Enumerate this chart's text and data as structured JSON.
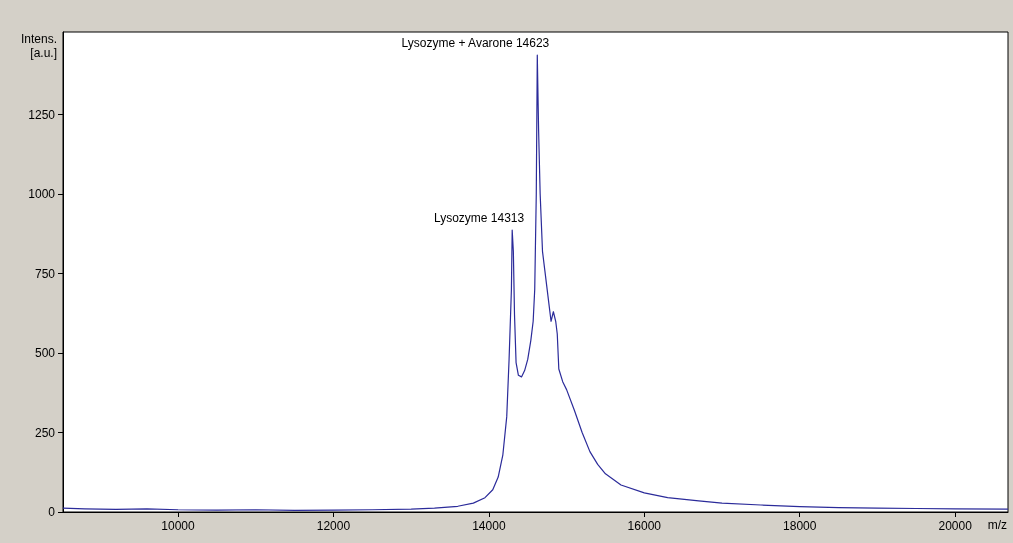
{
  "chart_data": {
    "type": "line",
    "xlabel": "m/z",
    "ylabel": "Intens.\n[a.u.]",
    "x": [
      8520,
      8800,
      9200,
      9600,
      10000,
      10500,
      11000,
      11500,
      12000,
      12500,
      13000,
      13300,
      13600,
      13800,
      13950,
      14050,
      14120,
      14180,
      14230,
      14260,
      14290,
      14300,
      14315,
      14330,
      14350,
      14380,
      14420,
      14460,
      14500,
      14540,
      14570,
      14590,
      14610,
      14623,
      14640,
      14660,
      14690,
      14720,
      14760,
      14800,
      14830,
      14860,
      14880,
      14900,
      14950,
      15000,
      15100,
      15200,
      15300,
      15400,
      15500,
      15700,
      16000,
      16300,
      16700,
      17000,
      17500,
      18000,
      18500,
      19000,
      19500,
      20000,
      20680
    ],
    "series": [
      {
        "color": "#2b2b9a",
        "values": [
          12,
          10,
          8,
          10,
          7,
          6,
          7,
          5,
          6,
          7,
          9,
          12,
          18,
          28,
          45,
          70,
          110,
          180,
          300,
          480,
          700,
          887,
          820,
          620,
          470,
          430,
          425,
          445,
          480,
          540,
          600,
          700,
          1000,
          1437,
          1200,
          1000,
          820,
          760,
          680,
          600,
          630,
          600,
          560,
          450,
          410,
          385,
          320,
          250,
          190,
          150,
          120,
          85,
          60,
          45,
          35,
          28,
          22,
          17,
          14,
          12,
          11,
          10,
          9
        ]
      }
    ],
    "xlim": [
      8520,
      20680
    ],
    "xticks": [
      10000,
      12000,
      14000,
      16000,
      18000,
      20000
    ],
    "ylim": [
      0,
      1510
    ],
    "yticks": [
      0,
      250,
      500,
      750,
      1000,
      1250
    ],
    "grid": false,
    "marker": "none",
    "line_style": "solid",
    "annotations": [
      {
        "text": "Lysozyme 14313",
        "x": 14300,
        "y": 887
      },
      {
        "text": "Lysozyme + Avarone 14623",
        "x": 14623,
        "y": 1437
      }
    ]
  }
}
